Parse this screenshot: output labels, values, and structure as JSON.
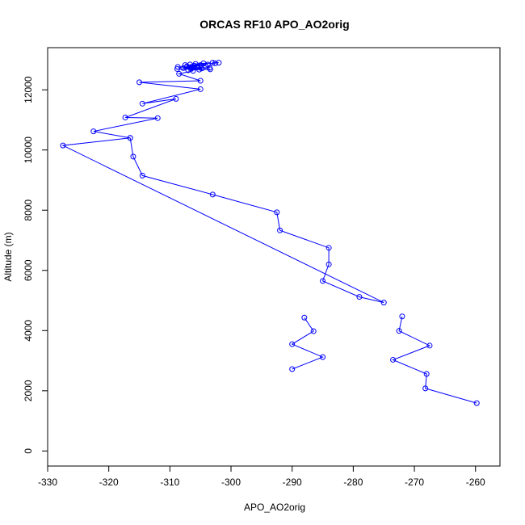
{
  "chart_data": {
    "type": "line",
    "title": "ORCAS RF10 APO_AO2orig",
    "xlabel": "APO_AO2orig",
    "ylabel": "Altitude (m)",
    "xlim": [
      -330,
      -256
    ],
    "ylim": [
      -500,
      13400
    ],
    "x_ticks": [
      -330,
      -320,
      -310,
      -300,
      -290,
      -280,
      -270,
      -260
    ],
    "y_ticks": [
      0,
      2000,
      4000,
      6000,
      8000,
      10000,
      12000
    ],
    "grid": false,
    "series": [
      {
        "color": "#0000ff",
        "marker": "open-circle",
        "points": [
          {
            "x": -302.0,
            "y": 12900
          },
          {
            "x": -303.0,
            "y": 12900
          },
          {
            "x": -302.6,
            "y": 12880
          },
          {
            "x": -304.5,
            "y": 12880
          },
          {
            "x": -305.8,
            "y": 12860
          },
          {
            "x": -303.8,
            "y": 12840
          },
          {
            "x": -306.7,
            "y": 12840
          },
          {
            "x": -305.0,
            "y": 12820
          },
          {
            "x": -307.5,
            "y": 12820
          },
          {
            "x": -306.0,
            "y": 12800
          },
          {
            "x": -304.2,
            "y": 12800
          },
          {
            "x": -307.2,
            "y": 12780
          },
          {
            "x": -305.5,
            "y": 12770
          },
          {
            "x": -308.7,
            "y": 12760
          },
          {
            "x": -306.3,
            "y": 12740
          },
          {
            "x": -303.5,
            "y": 12730
          },
          {
            "x": -307.8,
            "y": 12720
          },
          {
            "x": -304.8,
            "y": 12710
          },
          {
            "x": -306.5,
            "y": 12700
          },
          {
            "x": -308.8,
            "y": 12690
          },
          {
            "x": -303.4,
            "y": 12680
          },
          {
            "x": -305.2,
            "y": 12670
          },
          {
            "x": -307.0,
            "y": 12650
          },
          {
            "x": -306.2,
            "y": 12630
          },
          {
            "x": -308.5,
            "y": 12530
          },
          {
            "x": -305.0,
            "y": 12300
          },
          {
            "x": -315.0,
            "y": 12250
          },
          {
            "x": -305.0,
            "y": 12020
          },
          {
            "x": -314.5,
            "y": 11540
          },
          {
            "x": -309.0,
            "y": 11700
          },
          {
            "x": -317.3,
            "y": 11080
          },
          {
            "x": -312.0,
            "y": 11060
          },
          {
            "x": -322.5,
            "y": 10620
          },
          {
            "x": -316.5,
            "y": 10400
          },
          {
            "x": -327.5,
            "y": 10150
          },
          {
            "x": -275.0,
            "y": 4930
          },
          {
            "x": -279.0,
            "y": 5120
          },
          {
            "x": -285.0,
            "y": 5650
          },
          {
            "x": -284.0,
            "y": 6200
          },
          {
            "x": -284.0,
            "y": 6750
          },
          {
            "x": -292.0,
            "y": 7330
          },
          {
            "x": -292.5,
            "y": 7930
          },
          {
            "x": -303.0,
            "y": 8520
          },
          {
            "x": -314.5,
            "y": 9150
          },
          {
            "x": -316.0,
            "y": 9780
          },
          {
            "x": -316.5,
            "y": 10400
          }
        ]
      },
      {
        "color": "#0000ff",
        "marker": "open-circle",
        "points": [
          {
            "x": -288.0,
            "y": 4430
          },
          {
            "x": -286.5,
            "y": 3980
          },
          {
            "x": -290.0,
            "y": 3550
          },
          {
            "x": -285.0,
            "y": 3120
          },
          {
            "x": -290.0,
            "y": 2720
          }
        ]
      },
      {
        "color": "#0000ff",
        "marker": "open-circle",
        "points": [
          {
            "x": -272.0,
            "y": 4470
          },
          {
            "x": -272.5,
            "y": 3990
          },
          {
            "x": -267.5,
            "y": 3500
          },
          {
            "x": -273.5,
            "y": 3030
          },
          {
            "x": -268.0,
            "y": 2560
          },
          {
            "x": -268.2,
            "y": 2080
          },
          {
            "x": -259.8,
            "y": 1590
          }
        ]
      }
    ]
  }
}
